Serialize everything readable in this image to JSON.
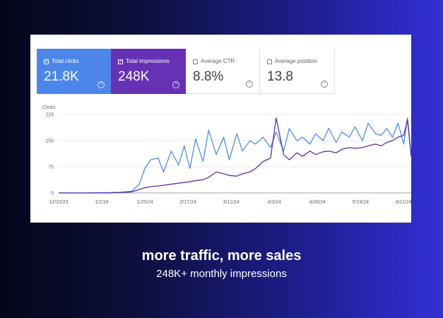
{
  "metrics": [
    {
      "label": "Total clicks",
      "value": "21.8K",
      "checked": true
    },
    {
      "label": "Total impressions",
      "value": "248K",
      "checked": true
    },
    {
      "label": "Average CTR",
      "value": "8.8%",
      "checked": false
    },
    {
      "label": "Average position",
      "value": "13.8",
      "checked": false
    }
  ],
  "caption": {
    "headline": "more traffic, more sales",
    "subline": "248K+ monthly impressions"
  },
  "colors": {
    "clicks": "#4c86ea",
    "impressions": "#6631b5",
    "clicks_line": "#4c8df0",
    "impressions_line": "#5a2fa8"
  },
  "chart_data": {
    "type": "line",
    "ylabel": "Clicks",
    "yticks": [
      0,
      75,
      150,
      225
    ],
    "ylim": [
      0,
      225
    ],
    "xlim": [
      "12/10/23",
      "6/15/24"
    ],
    "xticks": [
      "12/10/23",
      "1/2/24",
      "1/25/24",
      "2/17/24",
      "3/11/24",
      "4/3/24",
      "4/26/24",
      "5/19/24",
      "6/11/24"
    ],
    "grid": true,
    "series": [
      {
        "role": "clicks",
        "x": [
          "12/10/23",
          "12/25/23",
          "1/5/24",
          "1/12/24",
          "1/18/24",
          "1/22/24",
          "1/25/24",
          "1/28/24",
          "2/1/24",
          "2/4/24",
          "2/8/24",
          "2/12/24",
          "2/15/24",
          "2/18/24",
          "2/21/24",
          "2/25/24",
          "2/28/24",
          "3/3/24",
          "3/7/24",
          "3/10/24",
          "3/14/24",
          "3/17/24",
          "3/21/24",
          "3/24/24",
          "3/28/24",
          "4/1/24",
          "4/4/24",
          "4/8/24",
          "4/11/24",
          "4/15/24",
          "4/18/24",
          "4/22/24",
          "4/25/24",
          "4/29/24",
          "5/2/24",
          "5/6/24",
          "5/9/24",
          "5/13/24",
          "5/16/24",
          "5/20/24",
          "5/23/24",
          "5/27/24",
          "5/30/24",
          "6/2/24",
          "6/5/24",
          "6/8/24",
          "6/11/24",
          "6/13/24",
          "6/15/24"
        ],
        "values": [
          0,
          0,
          1,
          2,
          5,
          25,
          70,
          95,
          100,
          60,
          120,
          80,
          135,
          70,
          155,
          90,
          180,
          110,
          160,
          95,
          170,
          120,
          150,
          140,
          160,
          130,
          175,
          120,
          185,
          150,
          160,
          140,
          170,
          150,
          185,
          145,
          175,
          160,
          190,
          150,
          200,
          170,
          165,
          185,
          160,
          200,
          140,
          215,
          110
        ]
      },
      {
        "role": "impressions",
        "x": [
          "12/10/23",
          "12/25/23",
          "1/5/24",
          "1/12/24",
          "1/18/24",
          "1/22/24",
          "1/25/24",
          "1/28/24",
          "2/1/24",
          "2/4/24",
          "2/8/24",
          "2/12/24",
          "2/15/24",
          "2/18/24",
          "2/21/24",
          "2/25/24",
          "2/28/24",
          "3/3/24",
          "3/7/24",
          "3/10/24",
          "3/14/24",
          "3/17/24",
          "3/21/24",
          "3/24/24",
          "3/28/24",
          "4/1/24",
          "4/4/24",
          "4/8/24",
          "4/11/24",
          "4/15/24",
          "4/18/24",
          "4/22/24",
          "4/25/24",
          "4/29/24",
          "5/2/24",
          "5/6/24",
          "5/9/24",
          "5/13/24",
          "5/16/24",
          "5/20/24",
          "5/23/24",
          "5/27/24",
          "5/30/24",
          "6/2/24",
          "6/5/24",
          "6/8/24",
          "6/11/24",
          "6/13/24",
          "6/15/24"
        ],
        "values": [
          0,
          0,
          0,
          1,
          3,
          10,
          15,
          18,
          20,
          22,
          25,
          28,
          30,
          32,
          35,
          38,
          45,
          60,
          55,
          50,
          48,
          55,
          60,
          70,
          90,
          100,
          215,
          110,
          95,
          115,
          105,
          120,
          110,
          118,
          120,
          115,
          125,
          130,
          128,
          130,
          135,
          140,
          135,
          145,
          150,
          160,
          165,
          210,
          105
        ]
      }
    ]
  }
}
